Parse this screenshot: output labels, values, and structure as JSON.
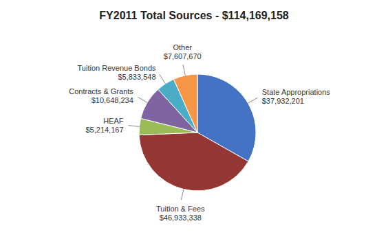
{
  "chart_data": {
    "type": "pie",
    "title": "FY2011 Total Sources - $114,169,158",
    "categories": [
      "State Appropriations",
      "Tuition & Fees",
      "HEAF",
      "Contracts & Grants",
      "Tuition Revenue Bonds",
      "Other"
    ],
    "values": [
      37932201,
      46933338,
      5214167,
      10648234,
      5833548,
      7607670
    ],
    "value_labels": [
      "$37,932,201",
      "$46,933,338",
      "$5,214,167",
      "$10,648,234",
      "$5,833,548",
      "$7,607,670"
    ],
    "colors": [
      "#4472C4",
      "#943634",
      "#9BBB59",
      "#8064A2",
      "#4BACC6",
      "#F79646"
    ],
    "data_labels": true
  }
}
